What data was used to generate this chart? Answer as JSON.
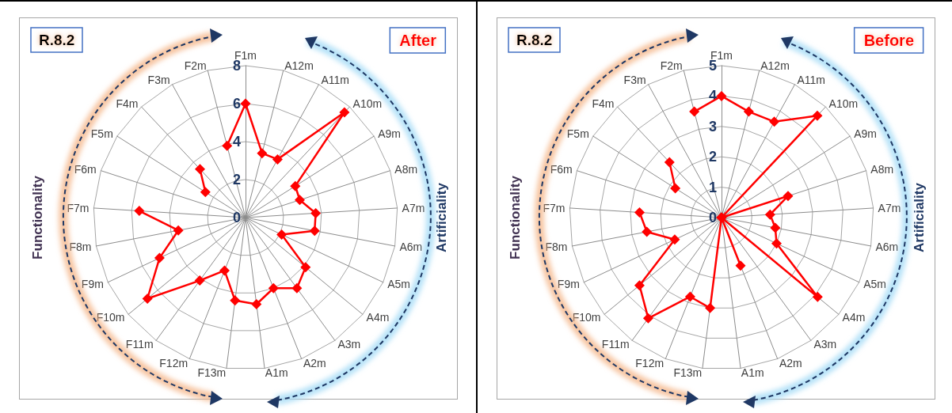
{
  "chart_data": [
    {
      "type": "radar",
      "title": "R.8.2",
      "subtitle": "After",
      "categories": [
        "F1m",
        "A12m",
        "A11m",
        "A10m",
        "A9m",
        "A8m",
        "A7m",
        "A6m",
        "A5m",
        "A4m",
        "A3m",
        "A2m",
        "A1m",
        "F13m",
        "F12m",
        "F11m",
        "F10m",
        "F9m",
        "F8m",
        "F7m",
        "F6m",
        "F5m",
        "F4m",
        "F3m",
        "F2m"
      ],
      "series": [
        {
          "color": "#ff0000",
          "values": [
            6,
            3.5,
            3.5,
            7.6,
            3.1,
            3.0,
            3.7,
            3.7,
            2.1,
            4.1,
            4.6,
            4.0,
            4.6,
            4.4,
            3.0,
            4.1,
            6.7,
            5.0,
            3.6,
            5.6,
            null,
            null,
            null,
            null,
            3.9
          ]
        },
        {
          "color": "#ff0000",
          "values": [
            null,
            null,
            null,
            null,
            null,
            null,
            null,
            null,
            null,
            null,
            null,
            null,
            null,
            null,
            null,
            null,
            null,
            null,
            null,
            null,
            null,
            2.5,
            3.5,
            null,
            null
          ]
        }
      ],
      "ylim": [
        0,
        8
      ],
      "yticks": [
        0,
        2,
        4,
        6,
        8
      ],
      "grid": true,
      "marker": "diamond",
      "annotations": [
        "Functionality",
        "Artificiality"
      ]
    },
    {
      "type": "radar",
      "title": "R.8.2",
      "subtitle": "Before",
      "categories": [
        "F1m",
        "A12m",
        "A11m",
        "A10m",
        "A9m",
        "A8m",
        "A7m",
        "A6m",
        "A5m",
        "A4m",
        "A3m",
        "A2m",
        "A1m",
        "F13m",
        "F12m",
        "F11m",
        "F10m",
        "F9m",
        "F8m",
        "F7m",
        "F6m",
        "F5m",
        "F4m",
        "F3m",
        "F2m"
      ],
      "series": [
        {
          "color": "#ff0000",
          "values": [
            4.0,
            3.6,
            3.6,
            4.6,
            0,
            2.3,
            1.6,
            1.8,
            2.0,
            4.1,
            0,
            1.7,
            0,
            3.0,
            2.8,
            4.1,
            3.5,
            1.7,
            2.5,
            2.7,
            null,
            null,
            null,
            null,
            3.6
          ]
        },
        {
          "color": "#ff0000",
          "values": [
            null,
            null,
            null,
            null,
            null,
            null,
            null,
            null,
            null,
            null,
            null,
            null,
            null,
            null,
            null,
            null,
            null,
            null,
            null,
            null,
            null,
            1.8,
            2.5,
            null,
            null
          ]
        }
      ],
      "ylim": [
        0,
        5
      ],
      "yticks": [
        0,
        1,
        2,
        3,
        4,
        5
      ],
      "grid": true,
      "marker": "diamond",
      "annotations": [
        "Functionality",
        "Artificiality"
      ]
    }
  ]
}
